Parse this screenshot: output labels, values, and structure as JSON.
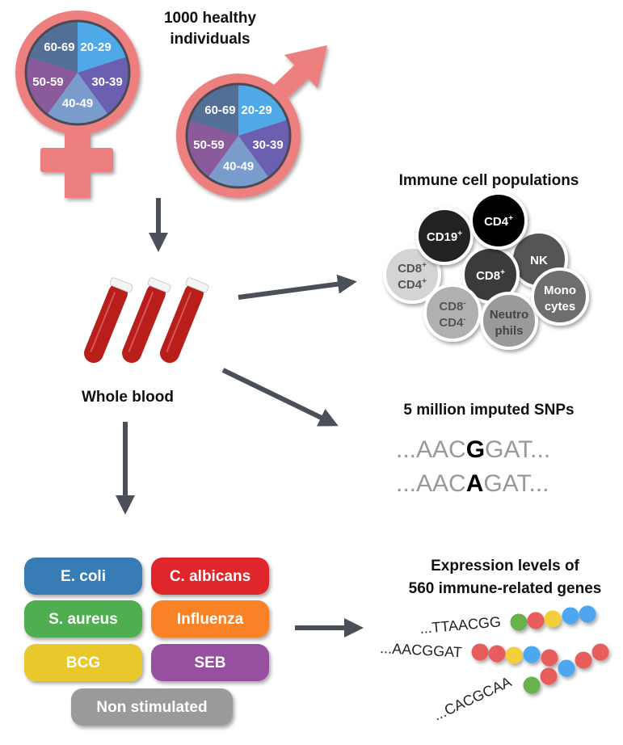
{
  "cohort": {
    "title_line1": "1000 healthy",
    "title_line2": "individuals",
    "age_groups": [
      "20-29",
      "30-39",
      "40-49",
      "50-59",
      "60-69"
    ],
    "age_colors": [
      "#4fa8e8",
      "#6a5fb0",
      "#7a9ccc",
      "#8a5a9a",
      "#536f96"
    ],
    "symbol_color": "#ee7f7f"
  },
  "sample": {
    "label": "Whole blood"
  },
  "immune_cells": {
    "title": "Immune cell populations",
    "cells": [
      {
        "label": "CD19",
        "sup": "+",
        "color": "#222222",
        "text": "#ffffff"
      },
      {
        "label": "CD4",
        "sup": "+",
        "color": "#000000",
        "text": "#ffffff"
      },
      {
        "label": "NK",
        "sup": "",
        "color": "#555555",
        "text": "#ffffff"
      },
      {
        "label": "CD8",
        "sup": "+",
        "label2": "CD4",
        "sup2": "+",
        "color": "#d4d4d4",
        "text": "#555555"
      },
      {
        "label": "CD8",
        "sup": "+",
        "color": "#3a3a3a",
        "text": "#ffffff"
      },
      {
        "label": "CD8",
        "sup": "-",
        "label2": "CD4",
        "sup2": "-",
        "color": "#b0b0b0",
        "text": "#555555"
      },
      {
        "label": "Neutro",
        "sup": "",
        "label2": "phils",
        "sup2": "",
        "color": "#9a9a9a",
        "text": "#444444"
      },
      {
        "label": "Mono",
        "sup": "",
        "label2": "cytes",
        "sup2": "",
        "color": "#6e6e6e",
        "text": "#ffffff"
      }
    ]
  },
  "snps": {
    "title": "5 million imputed SNPs",
    "seq1": {
      "prefix": "...AAC",
      "allele": "G",
      "suffix": "GAT..."
    },
    "seq2": {
      "prefix": "...AAC",
      "allele": "A",
      "suffix": "GAT..."
    }
  },
  "stimuli": [
    {
      "label": "E. coli",
      "color": "#397cb6"
    },
    {
      "label": "C. albicans",
      "color": "#e0262a"
    },
    {
      "label": "S. aureus",
      "color": "#4fae50"
    },
    {
      "label": "Influenza",
      "color": "#f98126"
    },
    {
      "label": "BCG",
      "color": "#e8c82b"
    },
    {
      "label": "SEB",
      "color": "#974f9f"
    },
    {
      "label": "Non stimulated",
      "color": "#9a9a9a"
    }
  ],
  "expression": {
    "title_line1": "Expression levels of",
    "title_line2": "560 immune-related genes",
    "sequences": [
      "...TTAACGG",
      "...AACGGAT",
      "...CACGCAA"
    ],
    "bead_colors": {
      "green": "#6ab04c",
      "red": "#e85c5c",
      "yellow": "#f2cf3a",
      "blue": "#4ea6f0"
    },
    "beads": [
      [
        "green",
        "red",
        "yellow",
        "blue",
        "blue"
      ],
      [
        "red",
        "red",
        "yellow",
        "blue",
        "red"
      ],
      [
        "green",
        "red",
        "blue",
        "red",
        "red"
      ]
    ]
  }
}
